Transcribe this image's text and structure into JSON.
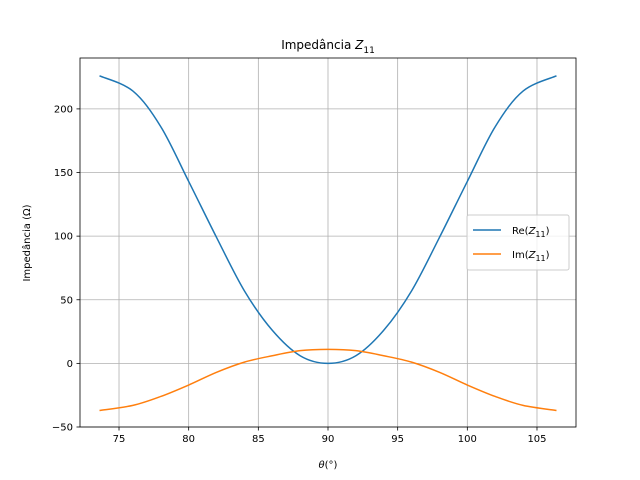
{
  "chart_data": {
    "type": "line",
    "title": "Impedância Z11",
    "xlabel": "θ(°)",
    "ylabel": "Impedância (Ω)",
    "xlim": [
      72.2,
      107.8
    ],
    "ylim": [
      -50,
      240
    ],
    "xticks": [
      "75",
      "80",
      "85",
      "90",
      "95",
      "100",
      "105"
    ],
    "xtick_values": [
      75,
      80,
      85,
      90,
      95,
      100,
      105
    ],
    "yticks": [
      "−50",
      "0",
      "50",
      "100",
      "150",
      "200"
    ],
    "ytick_values": [
      -50,
      0,
      50,
      100,
      150,
      200
    ],
    "grid": true,
    "legend_position": "center-right",
    "x": [
      73.6,
      76,
      78,
      80,
      82,
      84,
      86,
      88,
      90,
      92,
      94,
      96,
      98,
      100,
      102,
      104,
      106.4
    ],
    "series": [
      {
        "name": "Re(Z11)",
        "color": "#1f77b4",
        "values": [
          226,
          214,
          186,
          143,
          99,
          57,
          26,
          6,
          0,
          6,
          26,
          57,
          99,
          143,
          186,
          214,
          226
        ]
      },
      {
        "name": "Im(Z11)",
        "color": "#ff7f0e",
        "values": [
          -37,
          -33,
          -26,
          -17,
          -7,
          1,
          6,
          10,
          11,
          10,
          6,
          1,
          -7,
          -17,
          -26,
          -33,
          -37
        ]
      }
    ]
  }
}
